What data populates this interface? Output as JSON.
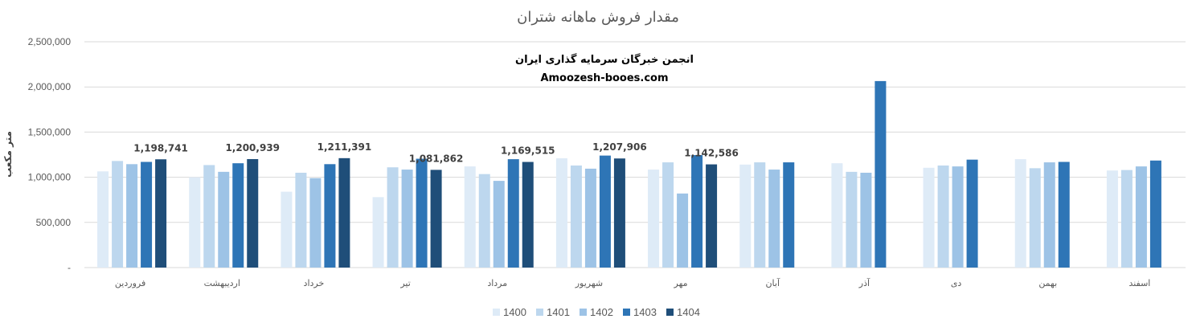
{
  "chart_data": {
    "type": "bar",
    "title": "مقدار فروش ماهانه شتران",
    "ylabel": "متر مکعب",
    "xlabel": "",
    "ylim": [
      0,
      2500000
    ],
    "yticks": [
      0,
      500000,
      1000000,
      1500000,
      2000000,
      2500000
    ],
    "ytick_labels": [
      "-",
      "500,000",
      "1,000,000",
      "1,500,000",
      "2,000,000",
      "2,500,000"
    ],
    "grid": true,
    "legend_position": "bottom",
    "categories": [
      "فروردین",
      "اردیبهشت",
      "خرداد",
      "تیر",
      "مرداد",
      "شهریور",
      "مهر",
      "آبان",
      "آذر",
      "دی",
      "بهمن",
      "اسفند"
    ],
    "series": [
      {
        "name": "1400",
        "color": "#deebf7",
        "values": [
          1065000,
          1000000,
          840000,
          780000,
          1120000,
          1210000,
          1085000,
          1140000,
          1155000,
          1105000,
          1200000,
          1075000
        ]
      },
      {
        "name": "1401",
        "color": "#bdd7ee",
        "values": [
          1180000,
          1135000,
          1050000,
          1110000,
          1035000,
          1130000,
          1165000,
          1165000,
          1060000,
          1130000,
          1100000,
          1080000
        ]
      },
      {
        "name": "1402",
        "color": "#9dc3e6",
        "values": [
          1145000,
          1060000,
          990000,
          1085000,
          960000,
          1095000,
          820000,
          1085000,
          1050000,
          1120000,
          1165000,
          1120000
        ]
      },
      {
        "name": "1403",
        "color": "#2e75b6",
        "values": [
          1170000,
          1155000,
          1145000,
          1205000,
          1200000,
          1240000,
          1245000,
          1165000,
          2065000,
          1195000,
          1170000,
          1185000
        ]
      },
      {
        "name": "1404",
        "color": "#1f4e79",
        "values": [
          1198741,
          1200939,
          1211391,
          1081862,
          1169515,
          1207906,
          1142586,
          null,
          null,
          null,
          null,
          null
        ]
      }
    ],
    "data_labels": [
      {
        "series": "1404",
        "category_index": 0,
        "text": "1,198,741"
      },
      {
        "series": "1404",
        "category_index": 1,
        "text": "1,200,939"
      },
      {
        "series": "1404",
        "category_index": 2,
        "text": "1,211,391"
      },
      {
        "series": "1404",
        "category_index": 3,
        "text": "1,081,862"
      },
      {
        "series": "1404",
        "category_index": 4,
        "text": "1,169,515"
      },
      {
        "series": "1404",
        "category_index": 5,
        "text": "1,207,906"
      },
      {
        "series": "1404",
        "category_index": 6,
        "text": "1,142,586"
      }
    ],
    "annotations": [
      "انجمن خبرگان سرمایه گذاری ایران",
      "Amoozesh-booes.com"
    ]
  }
}
